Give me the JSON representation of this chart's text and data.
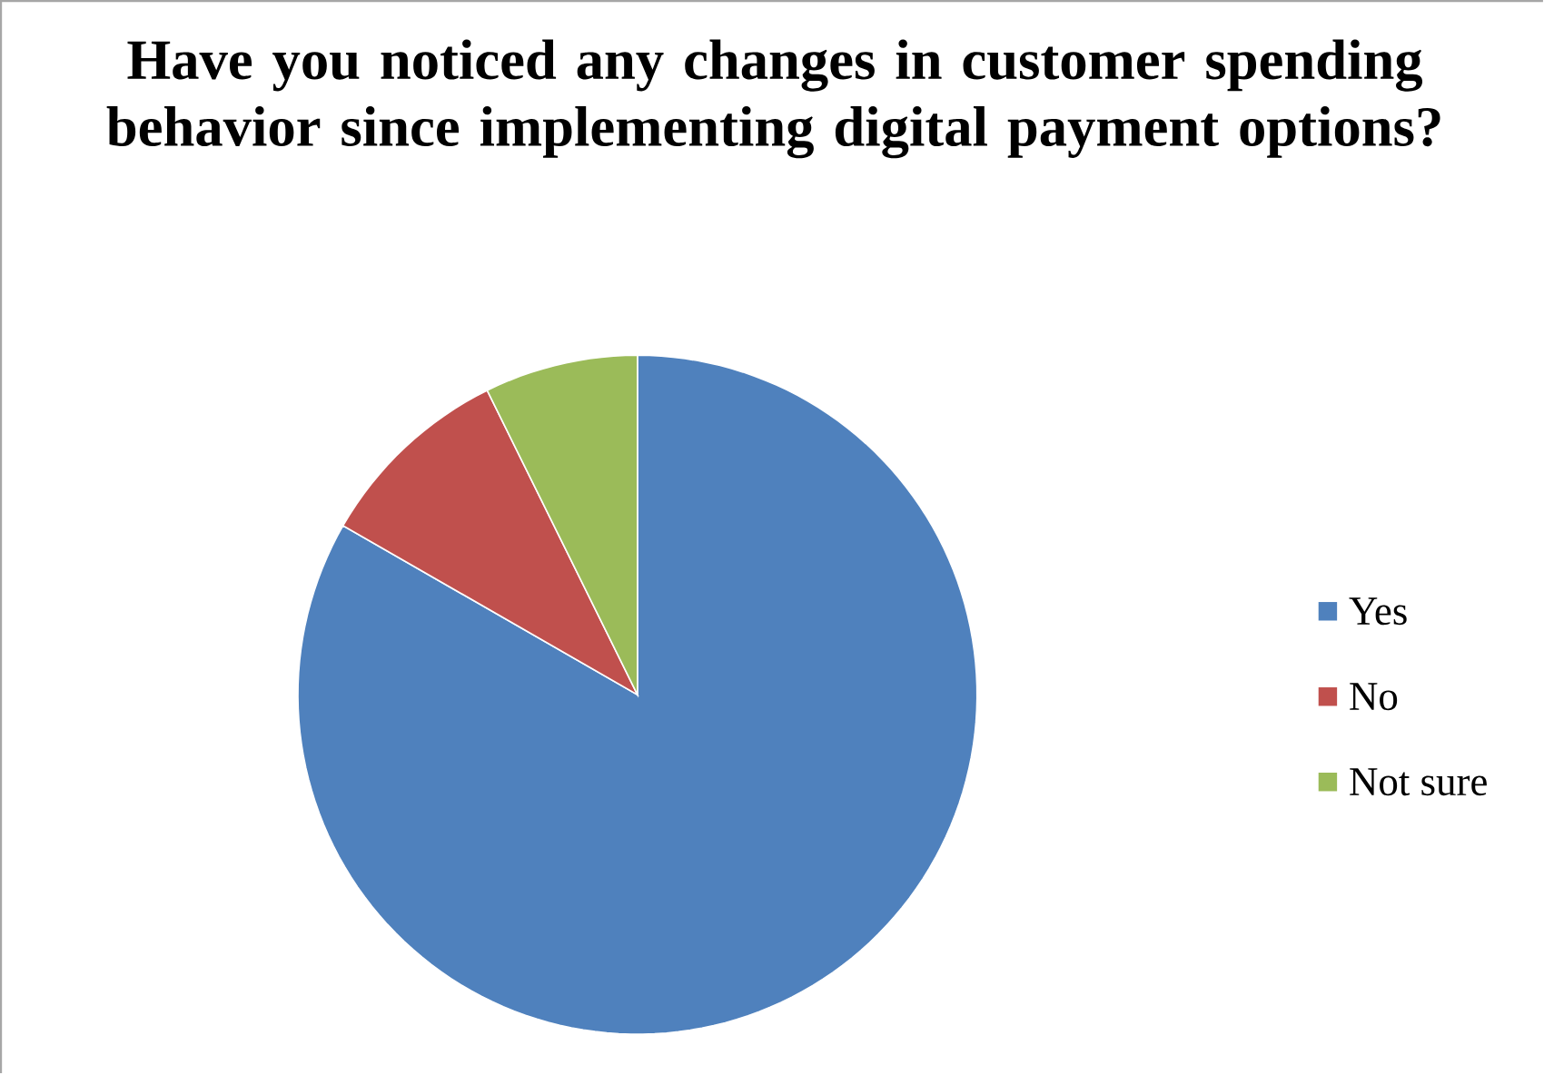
{
  "chart_data": {
    "type": "pie",
    "title": "Have you noticed any changes in customer spending behavior since implementing digital payment options?",
    "categories": [
      "Yes",
      "No",
      "Not sure"
    ],
    "values": [
      83.3,
      9.4,
      7.3
    ],
    "colors": [
      "#4f81bd",
      "#c0504d",
      "#9bbb59"
    ],
    "legend": "right"
  }
}
